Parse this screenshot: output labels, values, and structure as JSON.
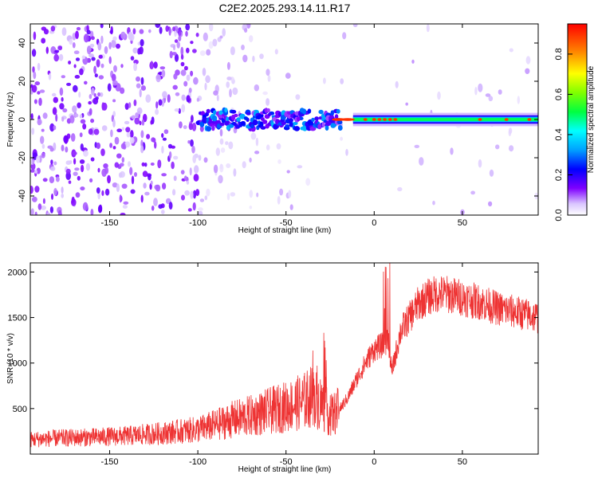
{
  "figure_title": "C2E2.2025.293.14.11.R17",
  "chart_data": [
    {
      "type": "heatmap",
      "title": "C2E2.2025.293.14.11.R17",
      "xlabel": "Height of straight line (km)",
      "ylabel": "Frequency (Hz)",
      "xlim": [
        -195,
        93
      ],
      "ylim": [
        -50,
        50
      ],
      "xticks": [
        -150,
        -100,
        -50,
        0,
        50
      ],
      "yticks": [
        -40,
        -20,
        0,
        20,
        40
      ],
      "xtick_labels": [
        "-150",
        "-100",
        "-50",
        "0",
        "50"
      ],
      "ytick_labels": [
        "-40",
        "-20",
        "0",
        "20",
        "40"
      ],
      "colorbar": {
        "label": "Normalized spectral amplitude",
        "range": [
          0,
          0.95
        ],
        "ticks": [
          0,
          0.2,
          0.4,
          0.6,
          0.8
        ],
        "tick_labels": [
          "0.0",
          "0.2",
          "0.4",
          "0.6",
          "0.8"
        ]
      },
      "description_regions": [
        {
          "x_range": [
            -195,
            -100
          ],
          "freq_range": [
            -50,
            50
          ],
          "amplitude": 0.05
        },
        {
          "x_range": [
            -100,
            -20
          ],
          "freq_range": [
            -6,
            6
          ],
          "amplitude": 0.25
        },
        {
          "x_range": [
            -20,
            93
          ],
          "freq_range": [
            -3,
            3
          ],
          "amplitude": 0.6
        },
        {
          "x_range": [
            -20,
            12
          ],
          "freq_range": [
            -1,
            1
          ],
          "amplitude": 0.9
        }
      ]
    },
    {
      "type": "line",
      "title": "",
      "xlabel": "Height of straight line (km)",
      "ylabel": "SNR (10 * v/v)",
      "xlim": [
        -195,
        93
      ],
      "ylim": [
        0,
        2100
      ],
      "xticks": [
        -150,
        -100,
        -50,
        0,
        50
      ],
      "yticks": [
        500,
        1000,
        1500,
        2000
      ],
      "xtick_labels": [
        "-150",
        "-100",
        "-50",
        "0",
        "50"
      ],
      "ytick_labels": [
        "500",
        "1000",
        "1500",
        "2000"
      ],
      "series": [
        {
          "name": "SNR",
          "color": "#ee3333",
          "x": [
            -195,
            -180,
            -160,
            -140,
            -120,
            -100,
            -90,
            -80,
            -70,
            -60,
            -50,
            -40,
            -35,
            -30,
            -25,
            -20,
            -15,
            -10,
            -5,
            0,
            5,
            8,
            10,
            15,
            20,
            25,
            30,
            35,
            40,
            45,
            50,
            55,
            60,
            70,
            80,
            93
          ],
          "y": [
            160,
            175,
            185,
            200,
            230,
            270,
            320,
            380,
            420,
            470,
            520,
            580,
            640,
            560,
            420,
            480,
            620,
            820,
            1000,
            1150,
            1200,
            1250,
            900,
            1350,
            1500,
            1650,
            1720,
            1760,
            1760,
            1740,
            1720,
            1690,
            1670,
            1600,
            1560,
            1500
          ]
        }
      ]
    }
  ]
}
